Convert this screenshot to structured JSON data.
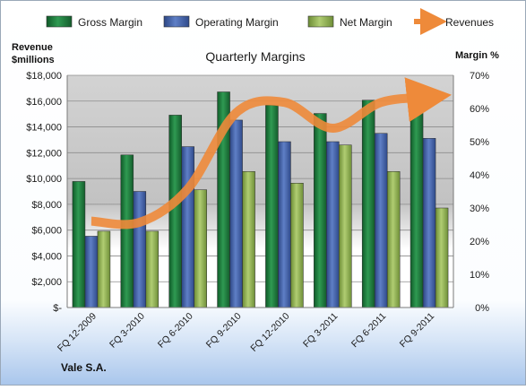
{
  "chart_data": {
    "type": "bar",
    "title": "Quarterly Margins",
    "company": "Vale S.A.",
    "left_axis_title_line1": "Revenue",
    "left_axis_title_line2": "$millions",
    "right_axis_title": "Margin %",
    "categories": [
      "FQ 12-2009",
      "FQ 3-2010",
      "FQ 6-2010",
      "FQ 9-2010",
      "FQ 12-2010",
      "FQ 3-2011",
      "FQ 6-2011",
      "FQ 9-2011"
    ],
    "left_ylim": [
      0,
      18000
    ],
    "left_ticks": [
      "$-",
      "$2,000",
      "$4,000",
      "$6,000",
      "$8,000",
      "$10,000",
      "$12,000",
      "$14,000",
      "$16,000",
      "$18,000"
    ],
    "right_ylim": [
      0,
      70
    ],
    "right_ticks": [
      "0%",
      "10%",
      "20%",
      "30%",
      "40%",
      "50%",
      "60%",
      "70%"
    ],
    "series": [
      {
        "name": "Gross Margin",
        "axis": "right",
        "color": "#1e7a3e",
        "values": [
          38,
          46,
          58,
          65,
          61,
          58.5,
          62.5,
          61.5
        ]
      },
      {
        "name": "Operating Margin",
        "axis": "right",
        "color": "#3f5fa8",
        "values": [
          21.5,
          35,
          48.5,
          56.5,
          50,
          50,
          52.5,
          51
        ]
      },
      {
        "name": "Net Margin",
        "axis": "right",
        "color": "#8fb24f",
        "values": [
          23,
          23,
          35.5,
          41,
          37.5,
          49,
          41,
          30
        ]
      },
      {
        "name": "Revenues",
        "axis": "left",
        "type": "line",
        "color": "#ee8a3a",
        "values": [
          6700,
          6600,
          9200,
          15100,
          15900,
          13900,
          15900,
          16300
        ]
      }
    ],
    "legend_position": "top",
    "grid": true
  }
}
